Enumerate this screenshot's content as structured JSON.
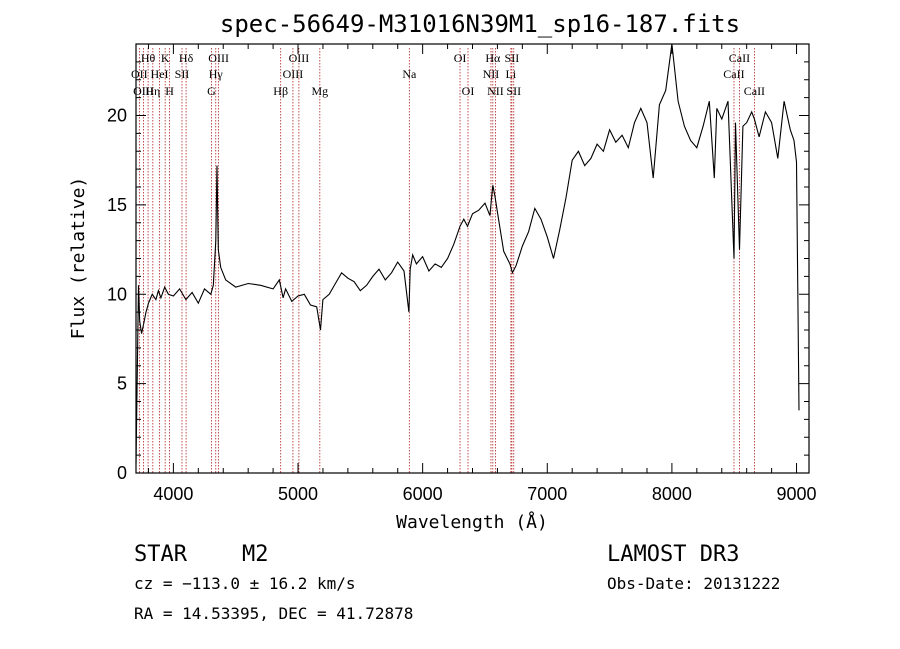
{
  "chart_data": {
    "type": "line",
    "title": "spec-56649-M31016N39M1_sp16-187.fits",
    "xlabel": "Wavelength (Å)",
    "ylabel": "Flux (relative)",
    "xlim": [
      3700,
      9100
    ],
    "ylim": [
      0,
      24
    ],
    "xticks": [
      4000,
      5000,
      6000,
      7000,
      8000,
      9000
    ],
    "xtick_labels": [
      "4000",
      "5000",
      "6000",
      "7000",
      "8000",
      "9000"
    ],
    "yticks": [
      0,
      5,
      10,
      15,
      20
    ],
    "ytick_labels": [
      "0",
      "5",
      "10",
      "15",
      "20"
    ],
    "grid": false,
    "series": [
      {
        "x": [
          3700,
          3720,
          3730,
          3745,
          3760,
          3780,
          3800,
          3830,
          3860,
          3880,
          3900,
          3930,
          3960,
          4000,
          4050,
          4100,
          4150,
          4200,
          4250,
          4300,
          4320,
          4340,
          4350,
          4360,
          4380,
          4420,
          4500,
          4600,
          4700,
          4800,
          4850,
          4880,
          4900,
          4950,
          5000,
          5050,
          5100,
          5150,
          5180,
          5200,
          5250,
          5300,
          5350,
          5400,
          5450,
          5500,
          5550,
          5600,
          5650,
          5700,
          5750,
          5800,
          5850,
          5890,
          5900,
          5920,
          5950,
          6000,
          6050,
          6100,
          6150,
          6200,
          6250,
          6300,
          6330,
          6360,
          6400,
          6450,
          6500,
          6540,
          6563,
          6580,
          6600,
          6650,
          6700,
          6720,
          6750,
          6800,
          6850,
          6900,
          6950,
          7000,
          7050,
          7100,
          7150,
          7200,
          7250,
          7300,
          7350,
          7400,
          7450,
          7500,
          7550,
          7600,
          7650,
          7700,
          7750,
          7800,
          7850,
          7900,
          7950,
          8000,
          8050,
          8100,
          8150,
          8200,
          8250,
          8300,
          8340,
          8360,
          8400,
          8450,
          8498,
          8510,
          8542,
          8570,
          8600,
          8640,
          8662,
          8700,
          8750,
          8800,
          8850,
          8900,
          8950,
          8980,
          9000,
          9020
        ],
        "y": [
          0.5,
          10.5,
          8.5,
          7.8,
          8.3,
          9.0,
          9.5,
          10.0,
          9.7,
          10.2,
          9.8,
          10.4,
          10.0,
          9.9,
          10.3,
          9.7,
          10.1,
          9.5,
          10.3,
          10.0,
          10.5,
          13.0,
          17.2,
          12.5,
          11.5,
          10.8,
          10.4,
          10.6,
          10.5,
          10.3,
          10.8,
          9.8,
          10.3,
          9.6,
          9.9,
          10.0,
          9.4,
          9.3,
          8.0,
          9.7,
          10.0,
          10.6,
          11.2,
          10.9,
          10.7,
          10.2,
          10.5,
          11.0,
          11.4,
          10.8,
          11.2,
          11.8,
          11.3,
          9.0,
          11.4,
          12.2,
          11.7,
          12.1,
          11.3,
          11.7,
          11.5,
          12.0,
          12.8,
          13.8,
          14.2,
          13.8,
          14.5,
          14.7,
          15.1,
          14.4,
          16.1,
          15.5,
          14.6,
          12.4,
          11.7,
          11.2,
          11.6,
          12.7,
          13.5,
          14.8,
          14.2,
          13.2,
          12.0,
          13.6,
          15.4,
          17.5,
          18.0,
          17.2,
          17.6,
          18.4,
          18.0,
          19.2,
          18.5,
          18.9,
          18.2,
          19.6,
          20.4,
          19.6,
          16.5,
          20.6,
          21.4,
          24.0,
          20.8,
          19.4,
          18.6,
          18.2,
          19.4,
          20.8,
          16.5,
          20.4,
          19.8,
          20.8,
          12.0,
          19.6,
          12.5,
          19.4,
          19.6,
          20.2,
          19.8,
          18.8,
          20.2,
          19.6,
          17.6,
          20.8,
          19.2,
          18.6,
          17.4,
          3.5
        ]
      }
    ],
    "spectral_lines": [
      {
        "label": "Hθ",
        "x": 3797,
        "row": 1
      },
      {
        "label": "OII",
        "x": 3727,
        "row": 2
      },
      {
        "label": "OIII",
        "x": 3760,
        "row": 3
      },
      {
        "label": "K",
        "x": 3934,
        "row": 1
      },
      {
        "label": "HeI",
        "x": 3889,
        "row": 2
      },
      {
        "label": "Hη",
        "x": 3835,
        "row": 3
      },
      {
        "label": "SII",
        "x": 4069,
        "row": 2
      },
      {
        "label": "H",
        "x": 3969,
        "row": 3
      },
      {
        "label": "Hδ",
        "x": 4102,
        "row": 1
      },
      {
        "label": "OIII",
        "x": 4363,
        "row": 1
      },
      {
        "label": "Hγ",
        "x": 4340,
        "row": 2
      },
      {
        "label": "G",
        "x": 4305,
        "row": 3
      },
      {
        "label": "OIII",
        "x": 5007,
        "row": 1
      },
      {
        "label": "OIII",
        "x": 4959,
        "row": 2
      },
      {
        "label": "Hβ",
        "x": 4861,
        "row": 3
      },
      {
        "label": "Mg",
        "x": 5175,
        "row": 3
      },
      {
        "label": "Na",
        "x": 5893,
        "row": 2
      },
      {
        "label": "OI",
        "x": 6300,
        "row": 1
      },
      {
        "label": "OI",
        "x": 6364,
        "row": 3
      },
      {
        "label": "Hα",
        "x": 6563,
        "row": 1
      },
      {
        "label": "NII",
        "x": 6548,
        "row": 2
      },
      {
        "label": "NII",
        "x": 6584,
        "row": 3
      },
      {
        "label": "SII",
        "x": 6716,
        "row": 1
      },
      {
        "label": "Li",
        "x": 6708,
        "row": 2
      },
      {
        "label": "SII",
        "x": 6731,
        "row": 3
      },
      {
        "label": "CaII",
        "x": 8542,
        "row": 1
      },
      {
        "label": "CaII",
        "x": 8498,
        "row": 2
      },
      {
        "label": "CaII",
        "x": 8662,
        "row": 3
      }
    ]
  },
  "info": {
    "object_type": "STAR",
    "subclass": "M2",
    "survey": "LAMOST DR3",
    "cz": "cz = −113.0 ± 16.2 km/s",
    "obs_date": "Obs-Date: 20131222",
    "coords": "RA =  14.53395, DEC =  41.72878"
  },
  "colors": {
    "spectrum": "#000000",
    "line_marker": "#b22222",
    "axes": "#000000"
  }
}
